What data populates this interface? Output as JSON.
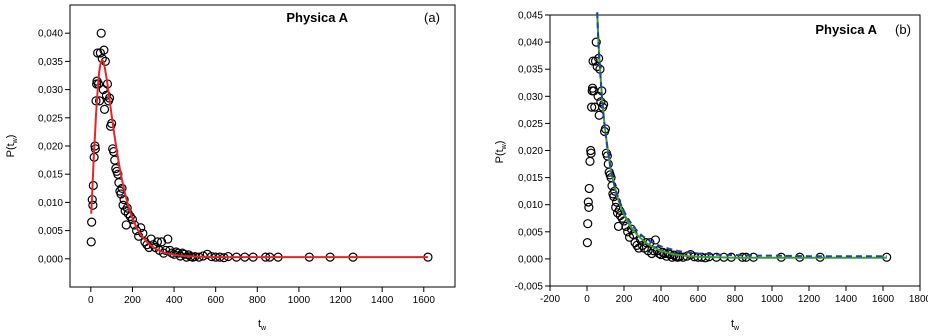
{
  "chart_data": [
    {
      "type": "scatter",
      "panel_label": "(a)",
      "annotation": "Physica A",
      "ylabel": "P(t_w)",
      "ylabel_main": "P(t",
      "ylabel_sub": "w",
      "ylabel_close": ")",
      "xlabel_main": "t",
      "xlabel_sub": "w",
      "xlim": [
        -100,
        1750
      ],
      "ylim": [
        -0.005,
        0.045
      ],
      "x_ticks": [
        0,
        200,
        400,
        600,
        800,
        1000,
        1200,
        1400,
        1600
      ],
      "x_tick_labels": [
        "0",
        "200",
        "400",
        "600",
        "800",
        "1000",
        "1200",
        "1400",
        "1600"
      ],
      "y_ticks": [
        0.0,
        0.005,
        0.01,
        0.015,
        0.02,
        0.025,
        0.03,
        0.035,
        0.04
      ],
      "y_tick_labels": [
        "0,000",
        "0,005",
        "0,010",
        "0,015",
        "0,020",
        "0,025",
        "0,030",
        "0,035",
        "0,040"
      ],
      "grid": false,
      "series": [
        {
          "kind": "points",
          "marker": "open-circle",
          "color": "#000000",
          "x": [
            2,
            4,
            7,
            10,
            12,
            16,
            20,
            22,
            25,
            28,
            30,
            33,
            37,
            42,
            46,
            50,
            55,
            60,
            63,
            66,
            70,
            75,
            80,
            85,
            90,
            95,
            100,
            105,
            110,
            115,
            120,
            125,
            130,
            135,
            140,
            145,
            150,
            155,
            160,
            165,
            170,
            175,
            180,
            190,
            200,
            210,
            220,
            230,
            240,
            250,
            260,
            270,
            280,
            290,
            300,
            310,
            320,
            330,
            340,
            350,
            360,
            370,
            380,
            390,
            400,
            410,
            420,
            430,
            440,
            450,
            460,
            470,
            480,
            490,
            500,
            520,
            540,
            560,
            580,
            600,
            620,
            640,
            660,
            700,
            740,
            780,
            840,
            860,
            900,
            1050,
            1150,
            1260,
            1620
          ],
          "y": [
            0.003,
            0.0065,
            0.0105,
            0.0095,
            0.013,
            0.018,
            0.02,
            0.0195,
            0.028,
            0.031,
            0.0315,
            0.0365,
            0.031,
            0.028,
            0.0365,
            0.04,
            0.0355,
            0.03,
            0.037,
            0.0265,
            0.035,
            0.029,
            0.031,
            0.028,
            0.0285,
            0.0235,
            0.024,
            0.0195,
            0.019,
            0.0175,
            0.016,
            0.0155,
            0.015,
            0.0135,
            0.012,
            0.0115,
            0.0125,
            0.0095,
            0.0105,
            0.0085,
            0.006,
            0.009,
            0.008,
            0.0075,
            0.007,
            0.006,
            0.005,
            0.004,
            0.0055,
            0.0045,
            0.003,
            0.0025,
            0.002,
            0.0035,
            0.0025,
            0.002,
            0.003,
            0.0015,
            0.003,
            0.001,
            0.0015,
            0.0035,
            0.0015,
            0.001,
            0.0008,
            0.0012,
            0.001,
            0.0005,
            0.001,
            0.0008,
            0.0003,
            0.0007,
            0.0004,
            0.0003,
            0.0004,
            0.0003,
            0.0005,
            0.0008,
            0.0004,
            0.0003,
            0.0003,
            0.0002,
            0.0004,
            0.0003,
            0.0003,
            0.0003,
            0.0003,
            0.0003,
            0.0003,
            0.0003,
            0.0003,
            0.0003,
            0.0003
          ]
        },
        {
          "kind": "curve",
          "color": "#e3262b",
          "dash": "solid",
          "x": [
            2,
            6,
            10,
            15,
            20,
            25,
            30,
            35,
            40,
            45,
            50,
            55,
            60,
            65,
            70,
            80,
            90,
            100,
            110,
            120,
            130,
            140,
            150,
            165,
            180,
            200,
            225,
            250,
            280,
            310,
            350,
            400,
            450,
            500,
            600,
            700,
            800,
            1000,
            1200,
            1400,
            1620
          ],
          "y": [
            0.008,
            0.011,
            0.0145,
            0.0185,
            0.022,
            0.0255,
            0.0285,
            0.031,
            0.033,
            0.0343,
            0.035,
            0.0352,
            0.035,
            0.0343,
            0.0333,
            0.031,
            0.0283,
            0.0255,
            0.0228,
            0.0203,
            0.018,
            0.0159,
            0.014,
            0.0115,
            0.0094,
            0.0072,
            0.0052,
            0.0038,
            0.0026,
            0.0018,
            0.0011,
            0.0007,
            0.0005,
            0.0004,
            0.0003,
            0.0003,
            0.0003,
            0.0003,
            0.0003,
            0.0003,
            0.0003
          ]
        }
      ]
    },
    {
      "type": "scatter",
      "panel_label": "(b)",
      "annotation": "Physica A",
      "ylabel": "P(t_w)",
      "ylabel_main": "P(t",
      "ylabel_sub": "w",
      "ylabel_close": ")",
      "xlabel_main": "t",
      "xlabel_sub": "w",
      "xlim": [
        -200,
        1800
      ],
      "ylim": [
        -0.005,
        0.045
      ],
      "x_ticks": [
        -200,
        0,
        200,
        400,
        600,
        800,
        1000,
        1200,
        1400,
        1600,
        1800
      ],
      "x_tick_labels": [
        "-200",
        "0",
        "200",
        "400",
        "600",
        "800",
        "1000",
        "1200",
        "1400",
        "1600",
        "1800"
      ],
      "y_ticks": [
        -0.005,
        0.0,
        0.005,
        0.01,
        0.015,
        0.02,
        0.025,
        0.03,
        0.035,
        0.04,
        0.045
      ],
      "y_tick_labels": [
        "-0,005",
        "0,000",
        "0,005",
        "0,010",
        "0,015",
        "0,020",
        "0,025",
        "0,030",
        "0,035",
        "0,040",
        "0,045"
      ],
      "grid": false,
      "series": [
        {
          "kind": "points",
          "marker": "open-circle",
          "color": "#000000",
          "x": [
            2,
            4,
            7,
            10,
            12,
            16,
            20,
            22,
            25,
            28,
            30,
            33,
            37,
            42,
            46,
            50,
            55,
            60,
            63,
            66,
            70,
            75,
            80,
            85,
            90,
            95,
            100,
            105,
            110,
            115,
            120,
            125,
            130,
            135,
            140,
            145,
            150,
            155,
            160,
            165,
            170,
            175,
            180,
            190,
            200,
            210,
            220,
            230,
            240,
            250,
            260,
            270,
            280,
            290,
            300,
            310,
            320,
            330,
            340,
            350,
            360,
            370,
            380,
            390,
            400,
            410,
            420,
            430,
            440,
            450,
            460,
            470,
            480,
            490,
            500,
            520,
            540,
            560,
            580,
            600,
            620,
            640,
            660,
            700,
            740,
            780,
            840,
            860,
            900,
            1050,
            1150,
            1260,
            1620
          ],
          "y": [
            0.003,
            0.0065,
            0.0105,
            0.0095,
            0.013,
            0.018,
            0.02,
            0.0195,
            0.028,
            0.031,
            0.0315,
            0.0365,
            0.031,
            0.028,
            0.0365,
            0.04,
            0.0355,
            0.03,
            0.037,
            0.0265,
            0.035,
            0.029,
            0.031,
            0.028,
            0.0285,
            0.0235,
            0.024,
            0.0195,
            0.019,
            0.0175,
            0.016,
            0.0155,
            0.015,
            0.0135,
            0.012,
            0.0115,
            0.0125,
            0.0095,
            0.0105,
            0.0085,
            0.006,
            0.009,
            0.008,
            0.0075,
            0.007,
            0.006,
            0.005,
            0.004,
            0.0055,
            0.0045,
            0.003,
            0.0025,
            0.002,
            0.0035,
            0.0025,
            0.002,
            0.003,
            0.0015,
            0.003,
            0.001,
            0.0015,
            0.0035,
            0.0015,
            0.001,
            0.0008,
            0.0012,
            0.001,
            0.0005,
            0.001,
            0.0008,
            0.0003,
            0.0007,
            0.0004,
            0.0003,
            0.0004,
            0.0003,
            0.0005,
            0.0008,
            0.0004,
            0.0003,
            0.0003,
            0.0002,
            0.0004,
            0.0003,
            0.0003,
            0.0003,
            0.0003,
            0.0003,
            0.0003,
            0.0003,
            0.0003,
            0.0003,
            0.0003
          ]
        },
        {
          "kind": "curve",
          "color": "#3a9d3a",
          "dash": "solid",
          "x": [
            55,
            60,
            65,
            70,
            80,
            90,
            100,
            110,
            120,
            130,
            140,
            150,
            160,
            175,
            190,
            210,
            230,
            250,
            275,
            300,
            330,
            360,
            400,
            450,
            500,
            550,
            600,
            700,
            800,
            900,
            1000,
            1200,
            1400,
            1620
          ],
          "y": [
            0.0455,
            0.0415,
            0.0382,
            0.0352,
            0.0304,
            0.0265,
            0.0233,
            0.0206,
            0.0183,
            0.0163,
            0.0146,
            0.0132,
            0.0119,
            0.0103,
            0.009,
            0.0075,
            0.0063,
            0.0053,
            0.0043,
            0.0035,
            0.0027,
            0.0021,
            0.0015,
            0.001,
            0.0007,
            0.0005,
            0.0004,
            0.0003,
            0.0002,
            0.0002,
            0.0002,
            0.0002,
            0.0002,
            0.0002
          ]
        },
        {
          "kind": "curve",
          "color": "#2a3f9e",
          "dash": "dashed",
          "x": [
            55,
            60,
            65,
            70,
            80,
            90,
            100,
            110,
            120,
            130,
            140,
            150,
            160,
            175,
            190,
            210,
            230,
            250,
            275,
            300,
            330,
            360,
            400,
            450,
            500,
            550,
            600,
            700,
            800,
            900,
            1000,
            1200,
            1400,
            1620
          ],
          "y": [
            0.0455,
            0.0412,
            0.0378,
            0.0348,
            0.03,
            0.0262,
            0.0231,
            0.0205,
            0.0183,
            0.0164,
            0.0148,
            0.0134,
            0.0122,
            0.0107,
            0.0095,
            0.0081,
            0.007,
            0.006,
            0.005,
            0.0042,
            0.0035,
            0.0029,
            0.0023,
            0.0018,
            0.0014,
            0.0012,
            0.001,
            0.0008,
            0.0007,
            0.0006,
            0.0006,
            0.0005,
            0.0005,
            0.0005
          ]
        }
      ]
    }
  ]
}
